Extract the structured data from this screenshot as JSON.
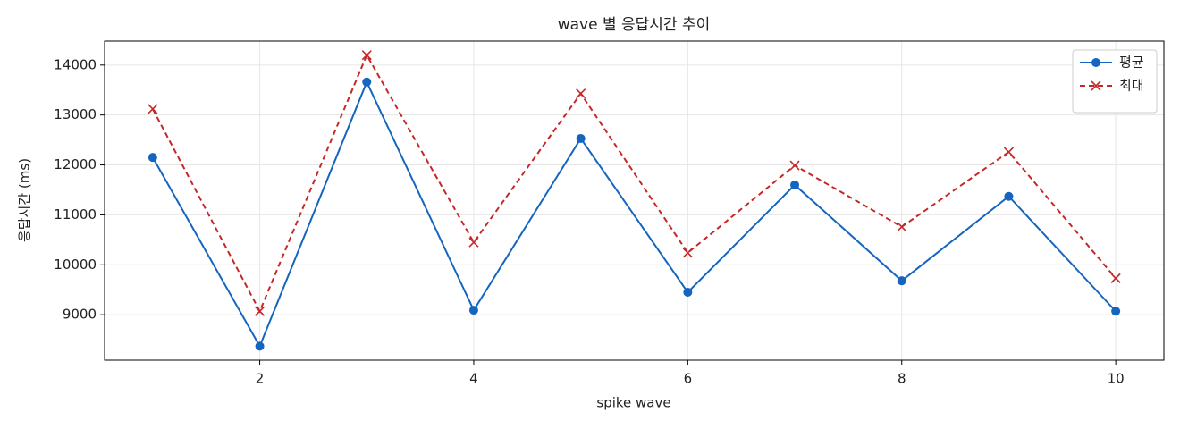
{
  "chart_data": {
    "type": "line",
    "title": "wave 별 응답시간 추이",
    "x_label": "spike wave",
    "y_label": "응답시간 (ms)",
    "x": [
      1,
      2,
      3,
      4,
      5,
      6,
      7,
      8,
      9,
      10
    ],
    "series": [
      {
        "name": "평균",
        "color": "#1565c0",
        "marker": "o",
        "linestyle": "solid",
        "values": [
          12150,
          8370,
          13660,
          9090,
          12530,
          9450,
          11600,
          9680,
          11370,
          9070
        ]
      },
      {
        "name": "최대",
        "color": "#c62828",
        "marker": "x",
        "linestyle": "dashed",
        "values": [
          13120,
          9070,
          14200,
          10450,
          13430,
          10240,
          11990,
          10760,
          12260,
          9730
        ]
      }
    ],
    "xlim": [
      0.55,
      10.45
    ],
    "ylim": [
      8090,
      14480
    ],
    "xticks": [
      2,
      4,
      6,
      8,
      10
    ],
    "yticks": [
      9000,
      10000,
      11000,
      12000,
      13000,
      14000
    ],
    "grid": true,
    "legend": "upper right"
  }
}
